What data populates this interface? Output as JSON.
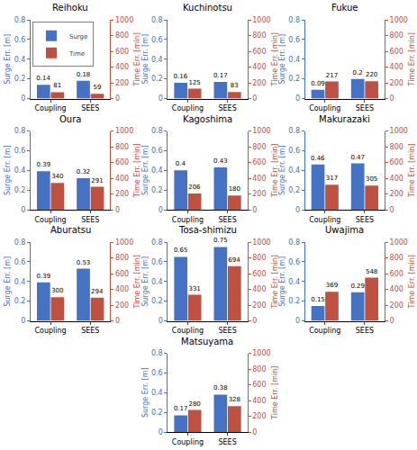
{
  "chart_data": [
    {
      "type": "bar",
      "title": "Reihoku",
      "categories": [
        "Coupling",
        "SEES"
      ],
      "series": [
        {
          "name": "Surge",
          "color": "#4472C4",
          "values": [
            0.14,
            0.18
          ]
        },
        {
          "name": "Time",
          "color": "#C05040",
          "values": [
            81,
            59
          ],
          "axis": "y2"
        }
      ],
      "ylabel": "Surge Err. [m]",
      "y2label": "Time Err. [min]",
      "ylim": [
        0,
        0.8
      ],
      "yticks": [
        0,
        0.2,
        0.4,
        0.6,
        0.8
      ],
      "y2lim": [
        0,
        1000
      ],
      "y2ticks": [
        0,
        200,
        400,
        600,
        800,
        1000
      ],
      "grid": false,
      "data_labels": true,
      "legend": "upper left"
    },
    {
      "type": "bar",
      "title": "Kuchinotsu",
      "categories": [
        "Coupling",
        "SEES"
      ],
      "series": [
        {
          "name": "Surge",
          "color": "#4472C4",
          "values": [
            0.16,
            0.17
          ]
        },
        {
          "name": "Time",
          "color": "#C05040",
          "values": [
            125,
            83
          ],
          "axis": "y2"
        }
      ],
      "ylabel": "Surge Err. [m]",
      "y2label": "Time Err. [min]",
      "ylim": [
        0,
        0.8
      ],
      "yticks": [
        0,
        0.2,
        0.4,
        0.6,
        0.8
      ],
      "y2lim": [
        0,
        1000
      ],
      "y2ticks": [
        0,
        200,
        400,
        600,
        800,
        1000
      ],
      "grid": false,
      "data_labels": true
    },
    {
      "type": "bar",
      "title": "Fukue",
      "categories": [
        "Coupling",
        "SEES"
      ],
      "series": [
        {
          "name": "Surge",
          "color": "#4472C4",
          "values": [
            0.09,
            0.2
          ]
        },
        {
          "name": "Time",
          "color": "#C05040",
          "values": [
            217,
            220
          ],
          "axis": "y2"
        }
      ],
      "ylabel": "Surge Err. [m]",
      "y2label": "Time Err. [min]",
      "ylim": [
        0,
        0.8
      ],
      "yticks": [
        0,
        0.2,
        0.4,
        0.6,
        0.8
      ],
      "y2lim": [
        0,
        1000
      ],
      "y2ticks": [
        0,
        200,
        400,
        600,
        800,
        1000
      ],
      "grid": false,
      "data_labels": true
    },
    {
      "type": "bar",
      "title": "Oura",
      "categories": [
        "Coupling",
        "SEES"
      ],
      "series": [
        {
          "name": "Surge",
          "color": "#4472C4",
          "values": [
            0.39,
            0.32
          ]
        },
        {
          "name": "Time",
          "color": "#C05040",
          "values": [
            340,
            291
          ],
          "axis": "y2"
        }
      ],
      "ylabel": "Surge Err. [m]",
      "y2label": "Time Err. [min]",
      "ylim": [
        0,
        0.8
      ],
      "yticks": [
        0,
        0.2,
        0.4,
        0.6,
        0.8
      ],
      "y2lim": [
        0,
        1000
      ],
      "y2ticks": [
        0,
        200,
        400,
        600,
        800,
        1000
      ],
      "grid": false,
      "data_labels": true
    },
    {
      "type": "bar",
      "title": "Kagoshima",
      "categories": [
        "Coupling",
        "SEES"
      ],
      "series": [
        {
          "name": "Surge",
          "color": "#4472C4",
          "values": [
            0.4,
            0.43
          ]
        },
        {
          "name": "Time",
          "color": "#C05040",
          "values": [
            206,
            180
          ],
          "axis": "y2"
        }
      ],
      "ylabel": "Surge Err. [m]",
      "y2label": "Time Err. [min]",
      "ylim": [
        0,
        0.8
      ],
      "yticks": [
        0,
        0.2,
        0.4,
        0.6,
        0.8
      ],
      "y2lim": [
        0,
        1000
      ],
      "y2ticks": [
        0,
        200,
        400,
        600,
        800,
        1000
      ],
      "grid": false,
      "data_labels": true
    },
    {
      "type": "bar",
      "title": "Makurazaki",
      "categories": [
        "Coupling",
        "SEES"
      ],
      "series": [
        {
          "name": "Surge",
          "color": "#4472C4",
          "values": [
            0.46,
            0.47
          ]
        },
        {
          "name": "Time",
          "color": "#C05040",
          "values": [
            317,
            305
          ],
          "axis": "y2"
        }
      ],
      "ylabel": "Surge Err. [m]",
      "y2label": "Time Err. [min]",
      "ylim": [
        0,
        0.8
      ],
      "yticks": [
        0,
        0.2,
        0.4,
        0.6,
        0.8
      ],
      "y2lim": [
        0,
        1000
      ],
      "y2ticks": [
        0,
        200,
        400,
        600,
        800,
        1000
      ],
      "grid": false,
      "data_labels": true
    },
    {
      "type": "bar",
      "title": "Aburatsu",
      "categories": [
        "Coupling",
        "SEES"
      ],
      "series": [
        {
          "name": "Surge",
          "color": "#4472C4",
          "values": [
            0.39,
            0.53
          ]
        },
        {
          "name": "Time",
          "color": "#C05040",
          "values": [
            300,
            294
          ],
          "axis": "y2"
        }
      ],
      "ylabel": "Surge Err. [m]",
      "y2label": "Time Err. [min]",
      "ylim": [
        0,
        0.8
      ],
      "yticks": [
        0,
        0.2,
        0.4,
        0.6,
        0.8
      ],
      "y2lim": [
        0,
        1000
      ],
      "y2ticks": [
        0,
        200,
        400,
        600,
        800,
        1000
      ],
      "grid": false,
      "data_labels": true
    },
    {
      "type": "bar",
      "title": "Tosa-shimizu",
      "categories": [
        "Coupling",
        "SEES"
      ],
      "series": [
        {
          "name": "Surge",
          "color": "#4472C4",
          "values": [
            0.65,
            0.75
          ]
        },
        {
          "name": "Time",
          "color": "#C05040",
          "values": [
            331,
            694
          ],
          "axis": "y2"
        }
      ],
      "ylabel": "Surge Err. [m]",
      "y2label": "Time Err. [min]",
      "ylim": [
        0,
        0.8
      ],
      "yticks": [
        0,
        0.2,
        0.4,
        0.6,
        0.8
      ],
      "y2lim": [
        0,
        1000
      ],
      "y2ticks": [
        0,
        200,
        400,
        600,
        800,
        1000
      ],
      "grid": false,
      "data_labels": true
    },
    {
      "type": "bar",
      "title": "Uwajima",
      "categories": [
        "Coupling",
        "SEES"
      ],
      "series": [
        {
          "name": "Surge",
          "color": "#4472C4",
          "values": [
            0.15,
            0.29
          ]
        },
        {
          "name": "Time",
          "color": "#C05040",
          "values": [
            369,
            548
          ],
          "axis": "y2"
        }
      ],
      "ylabel": "Surge Err. [m]",
      "y2label": "Time Err. [min]",
      "ylim": [
        0,
        0.8
      ],
      "yticks": [
        0,
        0.2,
        0.4,
        0.6,
        0.8
      ],
      "y2lim": [
        0,
        1000
      ],
      "y2ticks": [
        0,
        200,
        400,
        600,
        800,
        1000
      ],
      "grid": false,
      "data_labels": true
    },
    {
      "type": "bar",
      "title": "Matsuyama",
      "categories": [
        "Coupling",
        "SEES"
      ],
      "series": [
        {
          "name": "Surge",
          "color": "#4472C4",
          "values": [
            0.17,
            0.38
          ]
        },
        {
          "name": "Time",
          "color": "#C05040",
          "values": [
            280,
            328
          ],
          "axis": "y2"
        }
      ],
      "ylabel": "Surge Err. [m]",
      "y2label": "Time Err. [min]",
      "ylim": [
        0,
        0.8
      ],
      "yticks": [
        0,
        0.2,
        0.4,
        0.6,
        0.8
      ],
      "y2lim": [
        0,
        1000
      ],
      "y2ticks": [
        0,
        200,
        400,
        600,
        800,
        1000
      ],
      "grid": false,
      "data_labels": true
    }
  ]
}
